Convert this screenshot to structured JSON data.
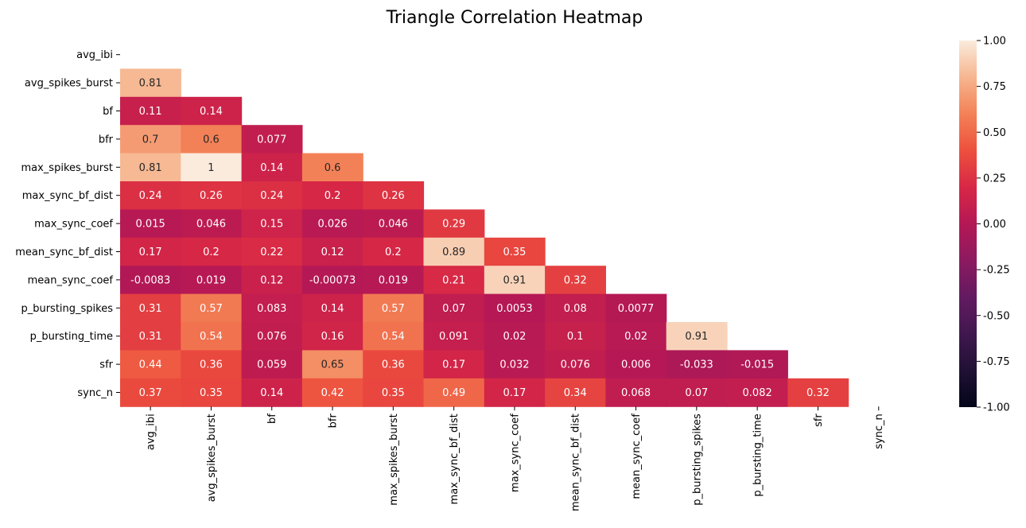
{
  "chart_data": {
    "type": "heatmap",
    "title": "Triangle Correlation Heatmap",
    "mask": "upper-triangle-including-diagonal",
    "labels": [
      "avg_ibi",
      "avg_spikes_burst",
      "bf",
      "bfr",
      "max_spikes_burst",
      "max_sync_bf_dist",
      "max_sync_coef",
      "mean_sync_bf_dist",
      "mean_sync_coef",
      "p_bursting_spikes",
      "p_bursting_time",
      "sfr",
      "sync_n"
    ],
    "matrix": [
      [],
      [
        "0.81"
      ],
      [
        "0.11",
        "0.14"
      ],
      [
        "0.7",
        "0.6",
        "0.077"
      ],
      [
        "0.81",
        "1",
        "0.14",
        "0.6"
      ],
      [
        "0.24",
        "0.26",
        "0.24",
        "0.2",
        "0.26"
      ],
      [
        "0.015",
        "0.046",
        "0.15",
        "0.026",
        "0.046",
        "0.29"
      ],
      [
        "0.17",
        "0.2",
        "0.22",
        "0.12",
        "0.2",
        "0.89",
        "0.35"
      ],
      [
        "-0.0083",
        "0.019",
        "0.12",
        "-0.00073",
        "0.019",
        "0.21",
        "0.91",
        "0.32"
      ],
      [
        "0.31",
        "0.57",
        "0.083",
        "0.14",
        "0.57",
        "0.07",
        "0.0053",
        "0.08",
        "0.0077"
      ],
      [
        "0.31",
        "0.54",
        "0.076",
        "0.16",
        "0.54",
        "0.091",
        "0.02",
        "0.1",
        "0.02",
        "0.91"
      ],
      [
        "0.44",
        "0.36",
        "0.059",
        "0.65",
        "0.36",
        "0.17",
        "0.032",
        "0.076",
        "0.006",
        "-0.033",
        "-0.015"
      ],
      [
        "0.37",
        "0.35",
        "0.14",
        "0.42",
        "0.35",
        "0.49",
        "0.17",
        "0.34",
        "0.068",
        "0.07",
        "0.082",
        "0.32"
      ]
    ],
    "colorbar": {
      "range": [
        -1,
        1
      ],
      "ticks": [
        "1.00",
        "0.75",
        "0.50",
        "0.25",
        "0.00",
        "-0.25",
        "-0.50",
        "-0.75",
        "-1.00"
      ],
      "colormap": "rocket"
    }
  }
}
